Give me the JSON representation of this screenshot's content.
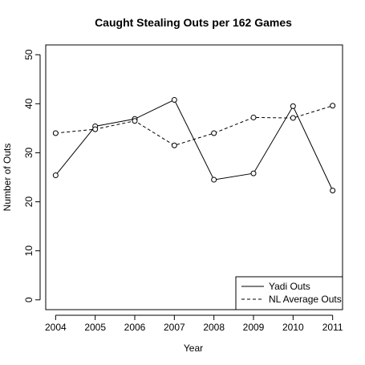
{
  "chart_data": {
    "type": "line",
    "title": "Caught Stealing Outs per 162 Games",
    "xlabel": "Year",
    "ylabel": "Number of Outs",
    "x": [
      2004,
      2005,
      2006,
      2007,
      2008,
      2009,
      2010,
      2011
    ],
    "x_tick_labels": [
      "2004",
      "2005",
      "2006",
      "2007",
      "2008",
      "2009",
      "2010",
      "2011"
    ],
    "y_ticks": [
      0,
      10,
      20,
      30,
      40,
      50
    ],
    "y_tick_labels": [
      "0",
      "10",
      "20",
      "30",
      "40",
      "50"
    ],
    "xlim": [
      2003.75,
      2011.25
    ],
    "ylim": [
      -2,
      52
    ],
    "grid": false,
    "legend_position": "bottom-right",
    "series": [
      {
        "name": "Yadi Outs",
        "line_style": "solid",
        "marker": "open-circle",
        "color": "#000000",
        "values": [
          25.4,
          35.4,
          36.9,
          40.8,
          24.5,
          25.8,
          39.5,
          22.3
        ]
      },
      {
        "name": "NL Average Outs",
        "line_style": "dashed",
        "marker": "open-circle",
        "color": "#000000",
        "values": [
          34.0,
          34.8,
          36.5,
          31.5,
          34.0,
          37.2,
          37.1,
          39.6
        ]
      }
    ]
  }
}
